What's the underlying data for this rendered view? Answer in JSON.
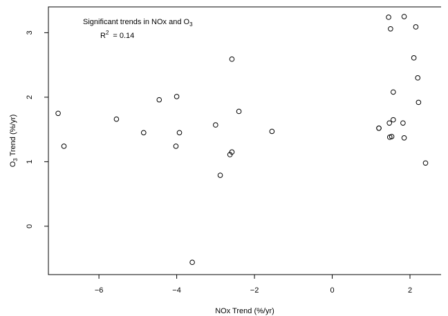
{
  "chart_data": {
    "type": "scatter",
    "xlabel": "NOx Trend (%/yr)",
    "ylabel_main": "O",
    "ylabel_sub": "3",
    "ylabel_tail": " Trend (%/yr)",
    "xlim": [
      -7.3,
      2.8
    ],
    "ylim": [
      -0.75,
      3.4
    ],
    "xticks": [
      -6,
      -4,
      -2,
      0,
      2
    ],
    "xtick_labels": [
      "−6",
      "−4",
      "−2",
      "0",
      "2"
    ],
    "yticks": [
      0,
      1,
      2,
      3
    ],
    "ytick_labels": [
      "0",
      "1",
      "2",
      "3"
    ],
    "grid": false,
    "annotation": {
      "line1_text": "Significant trends in NOx and O",
      "line1_sub": "3",
      "r2_label": "R",
      "r2_sup": "2",
      "r2_value": "= 0.14"
    },
    "points": [
      {
        "x": -7.05,
        "y": 1.75
      },
      {
        "x": -6.9,
        "y": 1.24
      },
      {
        "x": -5.55,
        "y": 1.66
      },
      {
        "x": -4.85,
        "y": 1.45
      },
      {
        "x": -4.45,
        "y": 1.96
      },
      {
        "x": -4.0,
        "y": 2.01
      },
      {
        "x": -4.02,
        "y": 1.24
      },
      {
        "x": -3.93,
        "y": 1.45
      },
      {
        "x": -3.6,
        "y": -0.56
      },
      {
        "x": -3.0,
        "y": 1.57
      },
      {
        "x": -2.88,
        "y": 0.79
      },
      {
        "x": -2.63,
        "y": 1.11
      },
      {
        "x": -2.58,
        "y": 1.15
      },
      {
        "x": -2.58,
        "y": 2.59
      },
      {
        "x": -2.4,
        "y": 1.78
      },
      {
        "x": -1.55,
        "y": 1.47
      },
      {
        "x": 1.2,
        "y": 1.52
      },
      {
        "x": 1.2,
        "y": 1.52
      },
      {
        "x": 1.45,
        "y": 3.24
      },
      {
        "x": 1.5,
        "y": 3.06
      },
      {
        "x": 1.47,
        "y": 1.6
      },
      {
        "x": 1.48,
        "y": 1.38
      },
      {
        "x": 1.53,
        "y": 1.39
      },
      {
        "x": 1.57,
        "y": 1.65
      },
      {
        "x": 1.57,
        "y": 2.08
      },
      {
        "x": 1.82,
        "y": 1.6
      },
      {
        "x": 1.85,
        "y": 1.37
      },
      {
        "x": 1.85,
        "y": 3.25
      },
      {
        "x": 2.1,
        "y": 2.61
      },
      {
        "x": 2.15,
        "y": 3.09
      },
      {
        "x": 2.2,
        "y": 2.3
      },
      {
        "x": 2.22,
        "y": 1.92
      },
      {
        "x": 2.4,
        "y": 0.98
      }
    ]
  }
}
